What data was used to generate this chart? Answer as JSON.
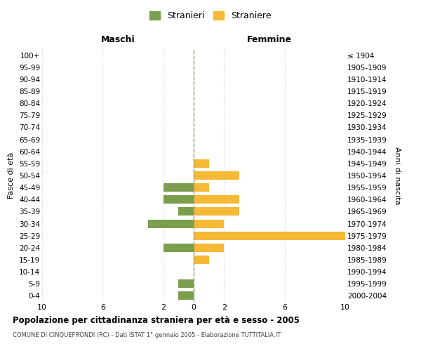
{
  "age_groups": [
    "100+",
    "95-99",
    "90-94",
    "85-89",
    "80-84",
    "75-79",
    "70-74",
    "65-69",
    "60-64",
    "55-59",
    "50-54",
    "45-49",
    "40-44",
    "35-39",
    "30-34",
    "25-29",
    "20-24",
    "15-19",
    "10-14",
    "5-9",
    "0-4"
  ],
  "birth_years": [
    "≤ 1904",
    "1905-1909",
    "1910-1914",
    "1915-1919",
    "1920-1924",
    "1925-1929",
    "1930-1934",
    "1935-1939",
    "1940-1944",
    "1945-1949",
    "1950-1954",
    "1955-1959",
    "1960-1964",
    "1965-1969",
    "1970-1974",
    "1975-1979",
    "1980-1984",
    "1985-1989",
    "1990-1994",
    "1995-1999",
    "2000-2004"
  ],
  "maschi": [
    0,
    0,
    0,
    0,
    0,
    0,
    0,
    0,
    0,
    0,
    0,
    2,
    2,
    1,
    3,
    0,
    2,
    0,
    0,
    1,
    1
  ],
  "femmine": [
    0,
    0,
    0,
    0,
    0,
    0,
    0,
    0,
    0,
    1,
    3,
    1,
    3,
    3,
    2,
    10,
    2,
    1,
    0,
    0,
    0
  ],
  "color_maschi": "#7a9e4e",
  "color_femmine": "#f5b935",
  "title": "Popolazione per cittadinanza straniera per età e sesso - 2005",
  "subtitle": "COMUNE DI CINQUEFRONDI (RC) - Dati ISTAT 1° gennaio 2005 - Elaborazione TUTTITALIA.IT",
  "label_maschi": "Maschi",
  "label_femmine": "Femmine",
  "ylabel_left": "Fasce di età",
  "ylabel_right": "Anni di nascita",
  "legend_maschi": "Stranieri",
  "legend_femmine": "Straniere",
  "xlim": 10,
  "xticks": [
    -10,
    -6,
    -2,
    0,
    2,
    6,
    10
  ],
  "background_color": "#ffffff",
  "grid_color": "#cccccc",
  "dashed_line_color": "#999966"
}
